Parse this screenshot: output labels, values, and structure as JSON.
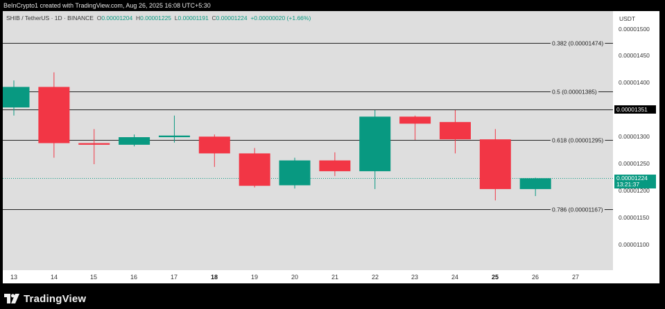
{
  "header": {
    "credit": "BeInCrypto1 created with TradingView.com, Aug 26, 2025 16:08 UTC+5:30"
  },
  "legend": {
    "symbol": "SHIB / TetherUS · 1D · BINANCE",
    "open_label": "O",
    "open": "0.00001204",
    "high_label": "H",
    "high": "0.00001225",
    "low_label": "L",
    "low": "0.00001191",
    "close_label": "C",
    "close": "0.00001224",
    "change": "+0.00000020 (+1.66%)"
  },
  "price_axis": {
    "currency": "USDT",
    "ticks": [
      "0.00001500",
      "0.00001450",
      "0.00001400",
      "0.00001300",
      "0.00001250",
      "0.00001200",
      "0.00001150",
      "0.00001100"
    ],
    "current_price_marker": "0.00001351",
    "last_price_marker": "0.00001224",
    "countdown": "13:21:37"
  },
  "footer": {
    "brand": "TradingView"
  },
  "colors": {
    "up": "#089981",
    "down": "#f23645",
    "plot_bg": "#dedede",
    "line": "#222222"
  },
  "chart_data": {
    "type": "candlestick",
    "x_labels": [
      "13",
      "14",
      "15",
      "16",
      "17",
      "18",
      "19",
      "20",
      "21",
      "22",
      "23",
      "24",
      "25",
      "26",
      "27"
    ],
    "bold_x_labels": [
      "18",
      "25"
    ],
    "candles": [
      {
        "day": "13",
        "open": 1.355e-05,
        "high": 1.405e-05,
        "low": 1.34e-05,
        "close": 1.393e-05
      },
      {
        "day": "14",
        "open": 1.393e-05,
        "high": 1.42e-05,
        "low": 1.262e-05,
        "close": 1.289e-05
      },
      {
        "day": "15",
        "open": 1.289e-05,
        "high": 1.315e-05,
        "low": 1.25e-05,
        "close": 1.286e-05
      },
      {
        "day": "16",
        "open": 1.286e-05,
        "high": 1.305e-05,
        "low": 1.283e-05,
        "close": 1.3e-05
      },
      {
        "day": "17",
        "open": 1.3e-05,
        "high": 1.34e-05,
        "low": 1.29e-05,
        "close": 1.303e-05
      },
      {
        "day": "18",
        "open": 1.301e-05,
        "high": 1.305e-05,
        "low": 1.245e-05,
        "close": 1.27e-05
      },
      {
        "day": "19",
        "open": 1.27e-05,
        "high": 1.28e-05,
        "low": 1.207e-05,
        "close": 1.21e-05
      },
      {
        "day": "20",
        "open": 1.211e-05,
        "high": 1.262e-05,
        "low": 1.205e-05,
        "close": 1.257e-05
      },
      {
        "day": "21",
        "open": 1.257e-05,
        "high": 1.272e-05,
        "low": 1.228e-05,
        "close": 1.237e-05
      },
      {
        "day": "22",
        "open": 1.237e-05,
        "high": 1.35e-05,
        "low": 1.204e-05,
        "close": 1.338e-05
      },
      {
        "day": "23",
        "open": 1.338e-05,
        "high": 1.34e-05,
        "low": 1.295e-05,
        "close": 1.325e-05
      },
      {
        "day": "24",
        "open": 1.328e-05,
        "high": 1.35e-05,
        "low": 1.27e-05,
        "close": 1.296e-05
      },
      {
        "day": "25",
        "open": 1.296e-05,
        "high": 1.315e-05,
        "low": 1.183e-05,
        "close": 1.204e-05
      },
      {
        "day": "26",
        "open": 1.204e-05,
        "high": 1.225e-05,
        "low": 1.191e-05,
        "close": 1.224e-05
      }
    ],
    "levels": [
      {
        "price": 1.474e-05,
        "label": "0.382 (0.00001474)"
      },
      {
        "price": 1.385e-05,
        "label": "0.5 (0.00001385)"
      },
      {
        "price": 1.351e-05,
        "label": ""
      },
      {
        "price": 1.295e-05,
        "label": "0.618 (0.00001295)"
      },
      {
        "price": 1.167e-05,
        "label": "0.786 (0.00001167)"
      }
    ],
    "last_price": 1.224e-05,
    "ylim": [
      1.05e-05,
      1.53e-05
    ]
  }
}
